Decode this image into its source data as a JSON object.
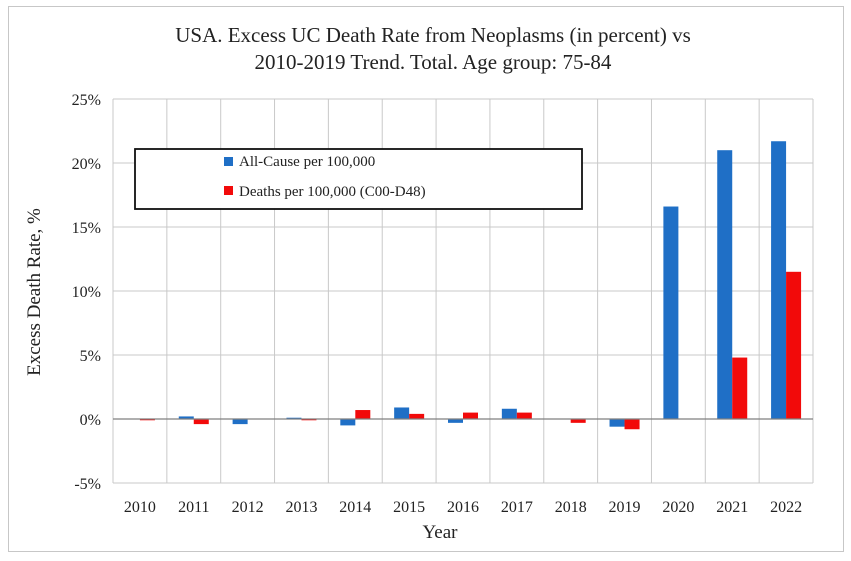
{
  "chart_data": {
    "type": "bar",
    "title_lines": [
      "USA. Excess  UC Death Rate from Neoplasms (in percent) vs",
      "2010-2019 Trend. Total. Age group: 75-84"
    ],
    "xlabel": "Year",
    "ylabel": "Excess Death Rate, %",
    "categories": [
      "2010",
      "2011",
      "2012",
      "2013",
      "2014",
      "2015",
      "2016",
      "2017",
      "2018",
      "2019",
      "2020",
      "2021",
      "2022"
    ],
    "y_ticks": [
      -5,
      0,
      5,
      10,
      15,
      20,
      25
    ],
    "y_tick_labels": [
      "-5%",
      "0%",
      "5%",
      "10%",
      "15%",
      "20%",
      "25%"
    ],
    "ylim": [
      -5,
      25
    ],
    "grid": true,
    "legend_position": "top-left",
    "series": [
      {
        "name": "All-Cause per 100,000",
        "color": "#1f6fc6",
        "values": [
          0.0,
          0.2,
          -0.4,
          0.1,
          -0.5,
          0.9,
          -0.3,
          0.8,
          0.0,
          -0.6,
          16.6,
          21.0,
          21.7
        ]
      },
      {
        "name": "Deaths per 100,000 (C00-D48)",
        "color": "#f20a0a",
        "values": [
          -0.1,
          -0.4,
          0.0,
          -0.1,
          0.7,
          0.4,
          0.5,
          0.5,
          -0.3,
          -0.8,
          0.0,
          4.8,
          11.5
        ]
      }
    ]
  }
}
